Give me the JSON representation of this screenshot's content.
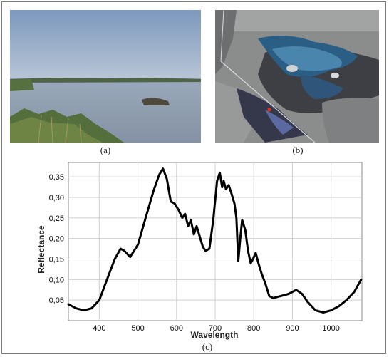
{
  "figure": {
    "panels": [
      {
        "caption": "(a)"
      },
      {
        "caption": "(b)"
      },
      {
        "caption": "(c)"
      }
    ]
  },
  "chart_data": {
    "type": "line",
    "xlabel": "Wavelength",
    "ylabel": "Reflectance",
    "xlim": [
      320,
      1080
    ],
    "ylim": [
      0,
      0.385
    ],
    "x_ticks": [
      400,
      500,
      600,
      700,
      800,
      900,
      1000
    ],
    "y_ticks": [
      0.05,
      0.1,
      0.15,
      0.2,
      0.25,
      0.3,
      0.35
    ],
    "y_tick_labels": [
      "0,05",
      "0,10",
      "0,15",
      "0,20",
      "0,25",
      "0,30",
      "0,35"
    ],
    "grid": true,
    "series": [
      {
        "color": "#000000",
        "x": [
          320,
          340,
          360,
          380,
          400,
          420,
          440,
          455,
          465,
          480,
          500,
          520,
          540,
          555,
          565,
          575,
          585,
          595,
          605,
          615,
          622,
          630,
          637,
          645,
          652,
          660,
          668,
          675,
          685,
          695,
          705,
          712,
          718,
          722,
          728,
          735,
          742,
          750,
          755,
          760,
          765,
          770,
          778,
          785,
          792,
          798,
          805,
          812,
          820,
          830,
          840,
          850,
          870,
          890,
          910,
          925,
          940,
          960,
          980,
          1000,
          1020,
          1040,
          1060,
          1078
        ],
        "y": [
          0.04,
          0.03,
          0.025,
          0.03,
          0.05,
          0.1,
          0.15,
          0.175,
          0.17,
          0.155,
          0.185,
          0.25,
          0.315,
          0.355,
          0.37,
          0.345,
          0.29,
          0.285,
          0.27,
          0.25,
          0.26,
          0.23,
          0.245,
          0.21,
          0.23,
          0.205,
          0.18,
          0.17,
          0.175,
          0.245,
          0.34,
          0.36,
          0.325,
          0.34,
          0.32,
          0.33,
          0.31,
          0.285,
          0.25,
          0.145,
          0.2,
          0.245,
          0.22,
          0.17,
          0.14,
          0.15,
          0.165,
          0.14,
          0.115,
          0.09,
          0.06,
          0.055,
          0.06,
          0.065,
          0.075,
          0.065,
          0.045,
          0.025,
          0.02,
          0.025,
          0.035,
          0.05,
          0.07,
          0.1
        ]
      }
    ]
  }
}
